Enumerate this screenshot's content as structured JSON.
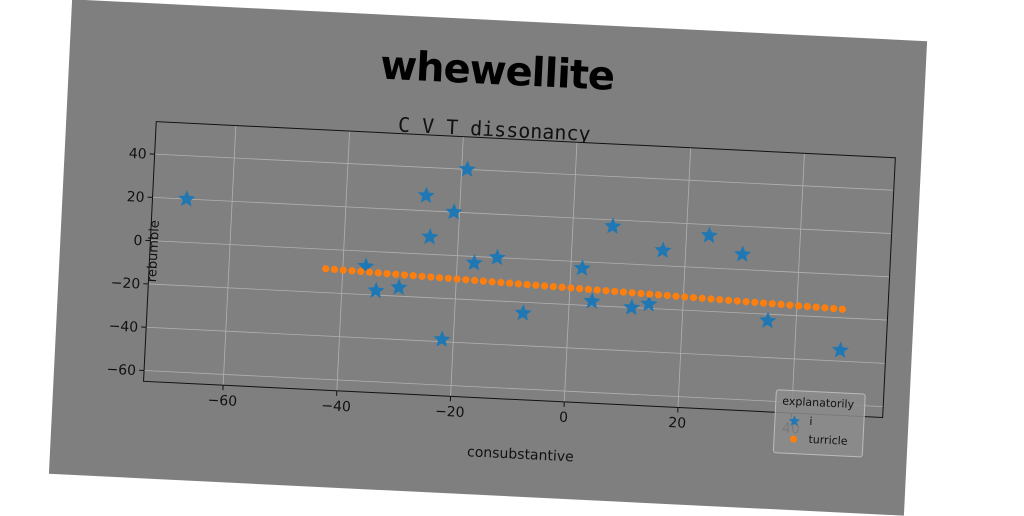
{
  "suptitle": "whewellite",
  "chart_data": {
    "type": "scatter",
    "title": "C V T dissonancy",
    "xlabel": "consubstantive",
    "ylabel": "rebumble",
    "xlim": [
      -74,
      56
    ],
    "ylim": [
      -65,
      55
    ],
    "xticks": [
      -60,
      -40,
      -20,
      0,
      20,
      40
    ],
    "yticks": [
      -60,
      -40,
      -20,
      0,
      20,
      40
    ],
    "grid": true,
    "legend": {
      "title": "explanatorily",
      "placement": "bottom-right"
    },
    "series": [
      {
        "name": "i",
        "marker": "star",
        "color": "#1f77b4",
        "x": [
          -68,
          -36,
          -34,
          -30,
          -26,
          -25,
          -22,
          -21,
          -19,
          -17,
          -13,
          -8,
          2,
          4,
          7,
          11,
          14,
          16,
          24,
          30,
          35,
          48
        ],
        "y": [
          20,
          -7,
          -18,
          -16,
          27,
          8,
          -39,
          20,
          40,
          -3,
          0,
          -25,
          -3,
          -18,
          17,
          -20,
          -18,
          7,
          15,
          7,
          -23,
          -35
        ]
      },
      {
        "name": "turricle",
        "marker": "circle",
        "color": "#ff7f0e",
        "x_start": -43,
        "x_end": 48,
        "count": 60,
        "y_start": -9,
        "y_end": -16
      }
    ]
  }
}
